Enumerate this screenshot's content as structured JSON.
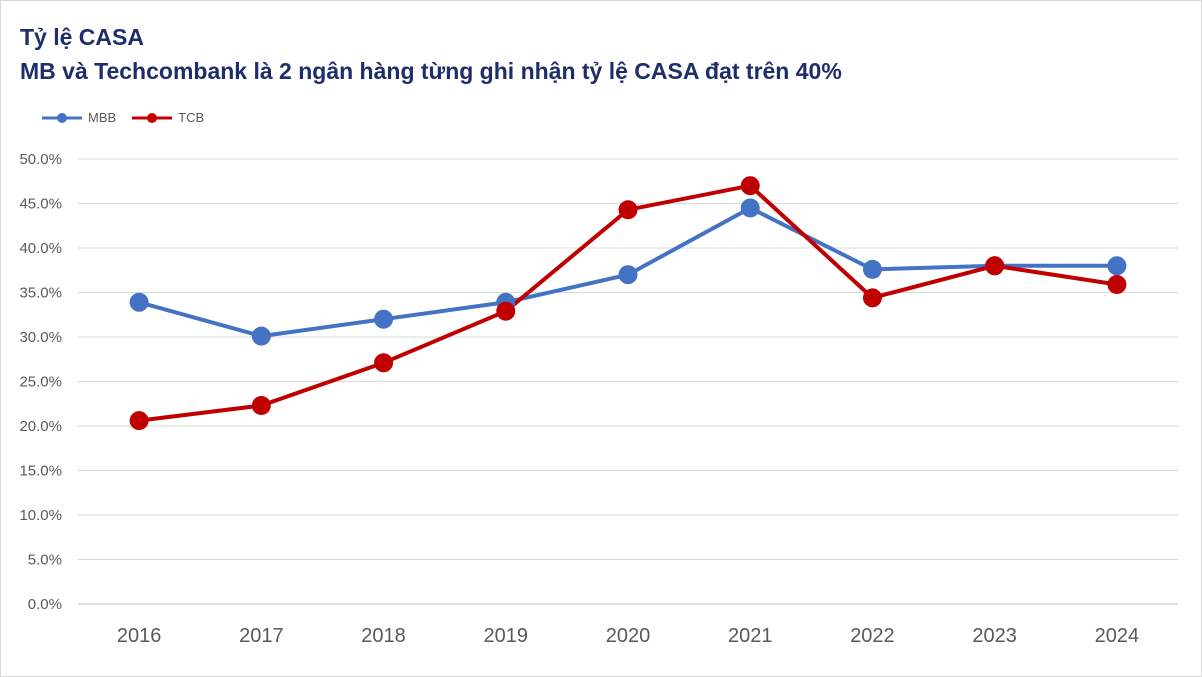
{
  "chart_data": {
    "type": "line",
    "title": "Tỷ lệ CASA",
    "subtitle": "MB và Techcombank là 2 ngân hàng từng ghi nhận tỷ lệ CASA đạt trên 40%",
    "xlabel": "",
    "ylabel": "",
    "categories": [
      "2016",
      "2017",
      "2018",
      "2019",
      "2020",
      "2021",
      "2022",
      "2023",
      "2024"
    ],
    "ylim": [
      0,
      50
    ],
    "yticks": [
      "0.0%",
      "5.0%",
      "10.0%",
      "15.0%",
      "20.0%",
      "25.0%",
      "30.0%",
      "35.0%",
      "40.0%",
      "45.0%",
      "50.0%"
    ],
    "grid": true,
    "legend_position": "top-left",
    "series": [
      {
        "name": "MBB",
        "color": "#4472c4",
        "values": [
          33.9,
          30.1,
          32.0,
          33.9,
          37.0,
          44.5,
          37.6,
          38.0,
          38.0
        ]
      },
      {
        "name": "TCB",
        "color": "#c00000",
        "values": [
          20.6,
          22.3,
          27.1,
          32.9,
          44.3,
          47.0,
          34.4,
          38.0,
          35.9
        ]
      }
    ]
  }
}
